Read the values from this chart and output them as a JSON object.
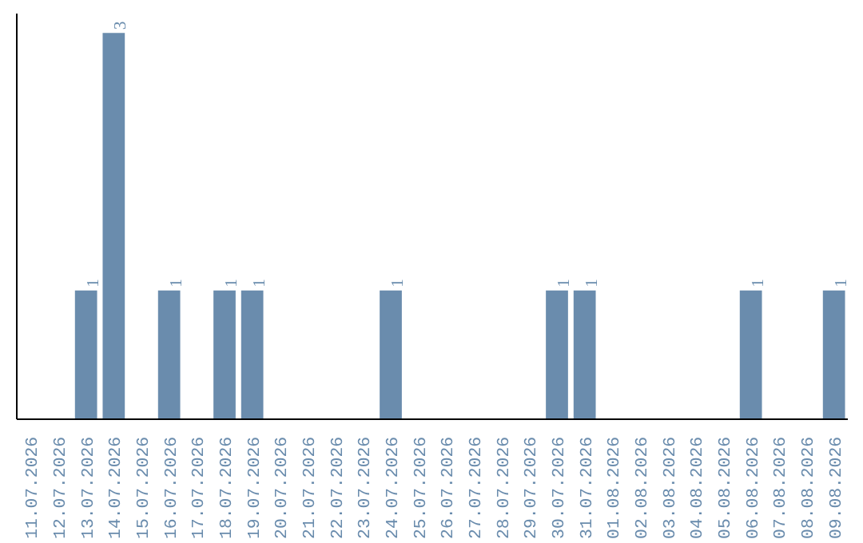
{
  "chart_data": {
    "type": "bar",
    "categories": [
      "11.07.2026",
      "12.07.2026",
      "13.07.2026",
      "14.07.2026",
      "15.07.2026",
      "16.07.2026",
      "17.07.2026",
      "18.07.2026",
      "19.07.2026",
      "20.07.2026",
      "21.07.2026",
      "22.07.2026",
      "23.07.2026",
      "24.07.2026",
      "25.07.2026",
      "26.07.2026",
      "27.07.2026",
      "28.07.2026",
      "29.07.2026",
      "30.07.2026",
      "31.07.2026",
      "01.08.2026",
      "02.08.2026",
      "03.08.2026",
      "04.08.2026",
      "05.08.2026",
      "06.08.2026",
      "07.08.2026",
      "08.08.2026",
      "09.08.2026"
    ],
    "values": [
      0,
      0,
      1,
      3,
      0,
      1,
      0,
      1,
      1,
      0,
      0,
      0,
      0,
      1,
      0,
      0,
      0,
      0,
      0,
      1,
      1,
      0,
      0,
      0,
      0,
      0,
      1,
      0,
      0,
      1
    ],
    "value_labels": [
      null,
      null,
      "1",
      "3",
      null,
      "1",
      null,
      "1",
      "1",
      null,
      null,
      null,
      null,
      "1",
      null,
      null,
      null,
      null,
      null,
      "1",
      "1",
      null,
      null,
      null,
      null,
      null,
      "1",
      null,
      null,
      "1"
    ],
    "color": "#6a8cad",
    "grid": false,
    "tick_labels": "x"
  }
}
